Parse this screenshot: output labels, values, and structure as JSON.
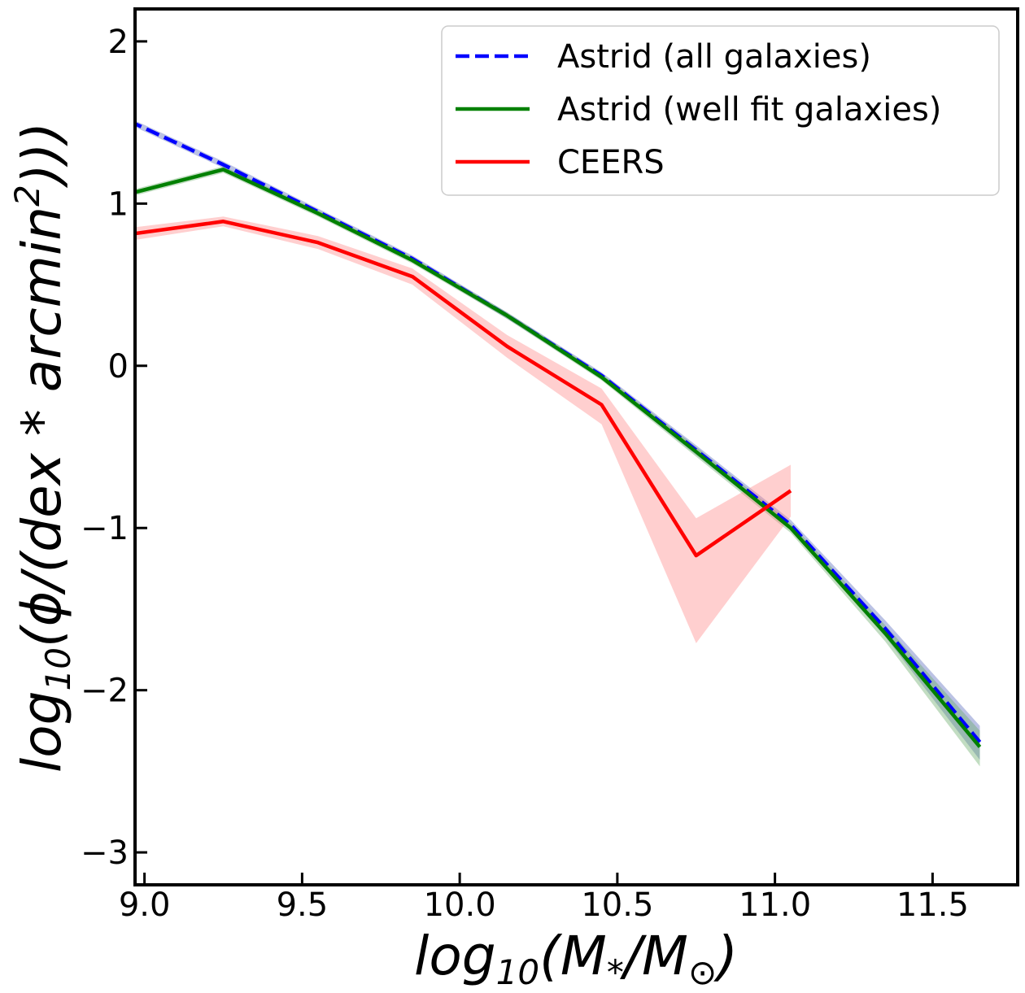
{
  "chart_data": {
    "type": "line",
    "title": "",
    "xlabel": {
      "base": "log",
      "sub": "10",
      "rest": "(M",
      "sub2": "*",
      "tail": "/M",
      "sub3": "⊙",
      "close": ")"
    },
    "ylabel": {
      "base": "log",
      "sub": "10",
      "rest": "(ϕ/(dex * arcmin",
      "sup": "2",
      "close": ")))"
    },
    "xlim": [
      8.97,
      11.77
    ],
    "ylim": [
      -3.2,
      2.2
    ],
    "xticks": [
      9.0,
      9.5,
      10.0,
      10.5,
      11.0,
      11.5
    ],
    "xtick_labels": [
      "9.0",
      "9.5",
      "10.0",
      "10.5",
      "11.0",
      "11.5"
    ],
    "yticks": [
      -3,
      -2,
      -1,
      0,
      1,
      2
    ],
    "ytick_labels": [
      "−3",
      "−2",
      "−1",
      "0",
      "1",
      "2"
    ],
    "legend_position": "top-right",
    "series": [
      {
        "name": "Astrid (all galaxies)",
        "color": "#0000ff",
        "style": "dashed",
        "x": [
          8.95,
          9.25,
          9.55,
          9.85,
          10.15,
          10.45,
          10.75,
          11.05,
          11.35,
          11.65
        ],
        "y": [
          1.51,
          1.24,
          0.95,
          0.66,
          0.31,
          -0.06,
          -0.52,
          -0.98,
          -1.62,
          -2.32
        ],
        "band_color": "#5566bb",
        "y_low": [
          1.49,
          1.22,
          0.93,
          0.64,
          0.29,
          -0.08,
          -0.55,
          -1.01,
          -1.67,
          -2.43
        ],
        "y_high": [
          1.53,
          1.26,
          0.97,
          0.68,
          0.33,
          -0.04,
          -0.49,
          -0.95,
          -1.57,
          -2.22
        ]
      },
      {
        "name": "Astrid (well fit galaxies)",
        "color": "#008000",
        "style": "solid",
        "x": [
          8.95,
          9.25,
          9.55,
          9.85,
          10.15,
          10.45,
          10.75,
          11.05,
          11.35,
          11.65
        ],
        "y": [
          1.06,
          1.21,
          0.94,
          0.65,
          0.31,
          -0.07,
          -0.53,
          -1.0,
          -1.65,
          -2.35
        ],
        "band_color": "#66aa66",
        "y_low": [
          1.04,
          1.19,
          0.92,
          0.63,
          0.29,
          -0.09,
          -0.56,
          -1.03,
          -1.7,
          -2.47
        ],
        "y_high": [
          1.08,
          1.23,
          0.96,
          0.67,
          0.33,
          -0.05,
          -0.5,
          -0.97,
          -1.6,
          -2.25
        ]
      },
      {
        "name": "CEERS",
        "color": "#ff0000",
        "style": "solid",
        "x": [
          8.95,
          9.25,
          9.55,
          9.85,
          10.15,
          10.45,
          10.75,
          11.05
        ],
        "y": [
          0.81,
          0.89,
          0.76,
          0.55,
          0.12,
          -0.24,
          -1.17,
          -0.77
        ],
        "band_color": "#ff8888",
        "y_low": [
          0.77,
          0.86,
          0.72,
          0.5,
          0.05,
          -0.36,
          -1.71,
          -0.93
        ],
        "y_high": [
          0.85,
          0.92,
          0.8,
          0.6,
          0.19,
          -0.14,
          -0.94,
          -0.61
        ]
      }
    ]
  }
}
